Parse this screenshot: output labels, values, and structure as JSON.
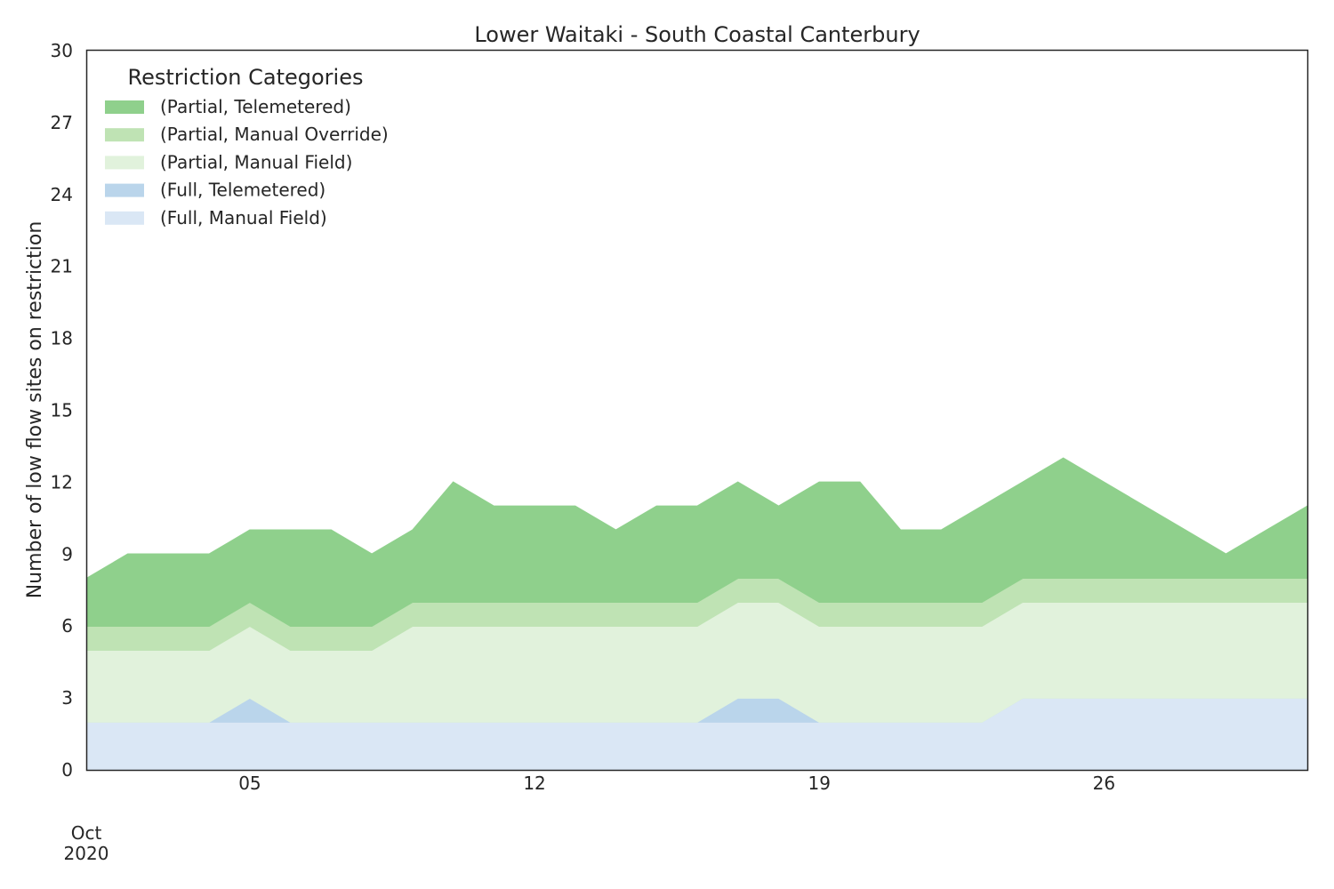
{
  "chart_data": {
    "type": "area",
    "stacked": true,
    "title": "Lower Waitaki - South Coastal Canterbury",
    "xlabel": "",
    "ylabel": "Number of low flow sites on restriction",
    "x": [
      "2020-10-01",
      "2020-10-02",
      "2020-10-03",
      "2020-10-04",
      "2020-10-05",
      "2020-10-06",
      "2020-10-07",
      "2020-10-08",
      "2020-10-09",
      "2020-10-10",
      "2020-10-11",
      "2020-10-12",
      "2020-10-13",
      "2020-10-14",
      "2020-10-15",
      "2020-10-16",
      "2020-10-17",
      "2020-10-18",
      "2020-10-19",
      "2020-10-20",
      "2020-10-21",
      "2020-10-22",
      "2020-10-23",
      "2020-10-24",
      "2020-10-25",
      "2020-10-26",
      "2020-10-27",
      "2020-10-28",
      "2020-10-29",
      "2020-10-30",
      "2020-10-31"
    ],
    "xlim": [
      "2020-10-01",
      "2020-10-31"
    ],
    "ylim": [
      0,
      30
    ],
    "yticks": [
      0,
      3,
      6,
      9,
      12,
      15,
      18,
      21,
      24,
      27,
      30
    ],
    "xticks": [
      {
        "date": "2020-10-05",
        "label": "05"
      },
      {
        "date": "2020-10-12",
        "label": "12"
      },
      {
        "date": "2020-10-19",
        "label": "19"
      },
      {
        "date": "2020-10-26",
        "label": "26"
      }
    ],
    "x_offset_label": [
      "Oct",
      "2020"
    ],
    "grid": false,
    "legend": {
      "title": "Restriction Categories",
      "placement": "top-left",
      "entries": [
        {
          "label": "(Partial, Telemetered)",
          "color": "#8fd08c"
        },
        {
          "label": "(Partial, Manual Override)",
          "color": "#bfe3b4"
        },
        {
          "label": "(Partial, Manual Field)",
          "color": "#e1f2dc"
        },
        {
          "label": "(Full, Telemetered)",
          "color": "#bad5eb"
        },
        {
          "label": "(Full, Manual Field)",
          "color": "#dae7f5"
        }
      ]
    },
    "series": [
      {
        "name": "(Full, Manual Field)",
        "color": "#dae7f5",
        "values": [
          2,
          2,
          2,
          2,
          2,
          2,
          2,
          2,
          2,
          2,
          2,
          2,
          2,
          2,
          2,
          2,
          2,
          2,
          2,
          2,
          2,
          2,
          2,
          3,
          3,
          3,
          3,
          3,
          3,
          3,
          3
        ]
      },
      {
        "name": "(Full, Telemetered)",
        "color": "#bad5eb",
        "values": [
          0,
          0,
          0,
          0,
          1,
          0,
          0,
          0,
          0,
          0,
          0,
          0,
          0,
          0,
          0,
          0,
          1,
          1,
          0,
          0,
          0,
          0,
          0,
          0,
          0,
          0,
          0,
          0,
          0,
          0,
          0
        ]
      },
      {
        "name": "(Partial, Manual Field)",
        "color": "#e1f2dc",
        "values": [
          3,
          3,
          3,
          3,
          3,
          3,
          3,
          3,
          4,
          4,
          4,
          4,
          4,
          4,
          4,
          4,
          4,
          4,
          4,
          4,
          4,
          4,
          4,
          4,
          4,
          4,
          4,
          4,
          4,
          4,
          4
        ]
      },
      {
        "name": "(Partial, Manual Override)",
        "color": "#bfe3b4",
        "values": [
          1,
          1,
          1,
          1,
          1,
          1,
          1,
          1,
          1,
          1,
          1,
          1,
          1,
          1,
          1,
          1,
          1,
          1,
          1,
          1,
          1,
          1,
          1,
          1,
          1,
          1,
          1,
          1,
          1,
          1,
          1
        ]
      },
      {
        "name": "(Partial, Telemetered)",
        "color": "#8fd08c",
        "values": [
          2,
          3,
          3,
          3,
          3,
          4,
          4,
          3,
          3,
          5,
          4,
          4,
          4,
          3,
          4,
          4,
          4,
          3,
          5,
          5,
          3,
          3,
          4,
          4,
          5,
          4,
          3,
          2,
          1,
          2,
          3
        ]
      }
    ]
  }
}
